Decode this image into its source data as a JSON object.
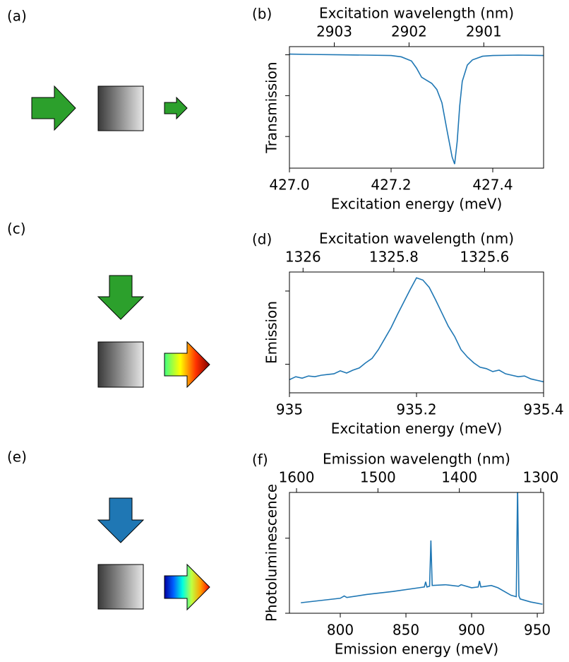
{
  "diagrams": [
    {
      "label": "(a)"
    },
    {
      "label": "(c)"
    },
    {
      "label": "(e)"
    }
  ],
  "chart_data": [
    {
      "type": "line",
      "panel_label": "(b)",
      "xlabel": "Excitation energy (meV)",
      "x2label": "Excitation wavelength (nm)",
      "ylabel": "Transmission",
      "color": "#1f77b4",
      "x": [
        427.0,
        427.05,
        427.1,
        427.15,
        427.2,
        427.22,
        427.24,
        427.25,
        427.26,
        427.27,
        427.28,
        427.29,
        427.3,
        427.31,
        427.32,
        427.325,
        427.33,
        427.335,
        427.34,
        427.35,
        427.36,
        427.38,
        427.4,
        427.45,
        427.5
      ],
      "values": [
        1.007,
        1.003,
        1.0,
        0.997,
        0.993,
        0.98,
        0.94,
        0.87,
        0.78,
        0.75,
        0.72,
        0.66,
        0.53,
        0.26,
        0.0,
        -0.07,
        0.15,
        0.5,
        0.74,
        0.9,
        0.95,
        0.986,
        0.993,
        0.997,
        0.993
      ],
      "xlim": [
        427.0,
        427.5
      ],
      "xticks": [
        {
          "value": 427.0,
          "label": "427.0"
        },
        427.2,
        427.4
      ],
      "x2lim": [
        2903.6,
        2900.2
      ],
      "x2ticks": [
        2903,
        2902,
        2901
      ],
      "ylim": [
        -0.11,
        1.08
      ],
      "yticks": [
        0.2,
        0.6,
        1.0
      ]
    },
    {
      "type": "line",
      "panel_label": "(d)",
      "xlabel": "Excitation energy (meV)",
      "x2label": "Excitation wavelength (nm)",
      "ylabel": "Emission",
      "color": "#1f77b4",
      "x": [
        935.0,
        935.01,
        935.02,
        935.03,
        935.04,
        935.05,
        935.06,
        935.07,
        935.08,
        935.09,
        935.1,
        935.11,
        935.12,
        935.13,
        935.14,
        935.15,
        935.16,
        935.17,
        935.18,
        935.19,
        935.2,
        935.21,
        935.22,
        935.23,
        935.24,
        935.25,
        935.26,
        935.27,
        935.28,
        935.29,
        935.3,
        935.31,
        935.32,
        935.33,
        935.34,
        935.35,
        935.36,
        935.37,
        935.38,
        935.39,
        935.4
      ],
      "values": [
        -0.21,
        -0.17,
        -0.19,
        -0.16,
        -0.17,
        -0.15,
        -0.14,
        -0.13,
        -0.09,
        -0.12,
        -0.08,
        -0.05,
        0.02,
        0.08,
        0.2,
        0.35,
        0.5,
        0.68,
        0.85,
        1.02,
        1.18,
        1.15,
        1.05,
        0.88,
        0.7,
        0.52,
        0.38,
        0.2,
        0.1,
        0.02,
        -0.04,
        -0.06,
        -0.1,
        -0.08,
        -0.13,
        -0.15,
        -0.17,
        -0.16,
        -0.2,
        -0.22,
        -0.24
      ],
      "xlim": [
        935.0,
        935.4
      ],
      "xticks": [
        935,
        935.2,
        935.4
      ],
      "x2lim": [
        1326.03,
        1325.47
      ],
      "x2ticks": [
        1326,
        1325.8,
        1325.6
      ],
      "ylim": [
        -0.39,
        1.26
      ],
      "yticks": [
        0,
        1
      ]
    },
    {
      "type": "line",
      "panel_label": "(f)",
      "xlabel": "Emission energy (meV)",
      "x2label": "Emission wavelength (nm)",
      "ylabel": "Photoluminescence",
      "color": "#1f77b4",
      "x": [
        770,
        780,
        790,
        800,
        803,
        805,
        820,
        840,
        860,
        864,
        865,
        866,
        868,
        869,
        870,
        880,
        890,
        892,
        900,
        905,
        906,
        907,
        915,
        920,
        930,
        934,
        935,
        936,
        937,
        945,
        954
      ],
      "values": [
        0.14,
        0.16,
        0.18,
        0.2,
        0.23,
        0.21,
        0.25,
        0.29,
        0.34,
        0.35,
        0.42,
        0.35,
        0.36,
        0.97,
        0.37,
        0.38,
        0.36,
        0.38,
        0.34,
        0.35,
        0.43,
        0.35,
        0.37,
        0.34,
        0.24,
        0.22,
        1.7,
        0.23,
        0.19,
        0.15,
        0.12
      ],
      "xlim": [
        761.3,
        954.8
      ],
      "xticks": [
        800,
        850,
        900,
        950
      ],
      "x2lim": [
        1608.7,
        1296.5
      ],
      "x2ticks": [
        1600,
        1500,
        1400,
        1300
      ],
      "ylim": [
        0,
        1.61
      ],
      "yticks": [
        0,
        1
      ]
    }
  ]
}
